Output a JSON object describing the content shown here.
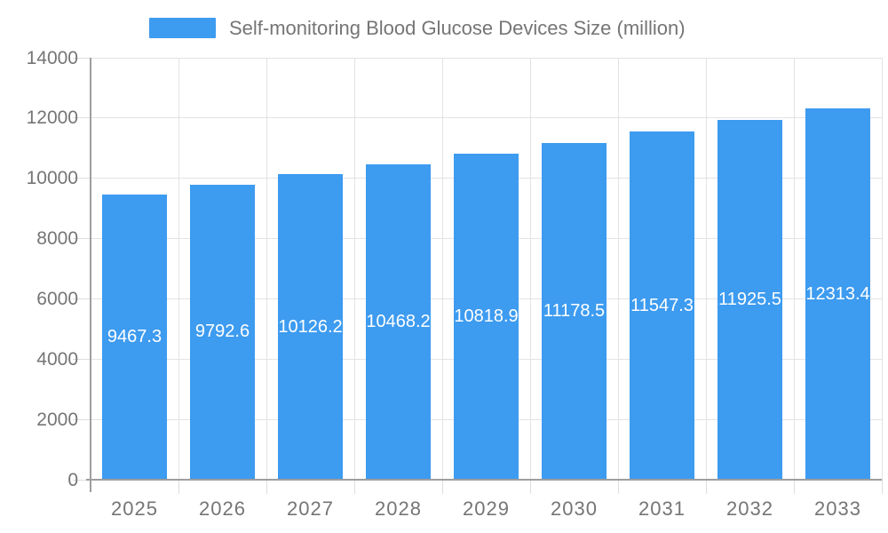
{
  "legend": {
    "series_label": "Self-monitoring Blood Glucose Devices Size (million)"
  },
  "chart_data": {
    "type": "bar",
    "title": "Self-monitoring Blood Glucose Devices Size (million)",
    "categories": [
      "2025",
      "2026",
      "2027",
      "2028",
      "2029",
      "2030",
      "2031",
      "2032",
      "2033"
    ],
    "values": [
      9467.3,
      9792.6,
      10126.2,
      10468.2,
      10818.9,
      11178.5,
      11547.3,
      11925.5,
      12313.4
    ],
    "bar_labels": [
      "9467.3",
      "9792.6",
      "10126.2",
      "10468.2",
      "10818.9",
      "11178.5",
      "11547.3",
      "11925.5",
      "12313.4"
    ],
    "xlabel": "",
    "ylabel": "",
    "ylim": [
      0,
      14000
    ],
    "yticks": [
      0,
      2000,
      4000,
      6000,
      8000,
      10000,
      12000,
      14000
    ],
    "ytick_labels": [
      "0",
      "2000",
      "4000",
      "6000",
      "8000",
      "10000",
      "12000",
      "14000"
    ],
    "grid": true,
    "legend_position": "top",
    "colors": {
      "bar": "#3D9BF0",
      "grid": "#e3e3e3",
      "tick": "#dddddd",
      "axis": "#9e9e9e",
      "axis_text": "#757575",
      "bar_label_text": "#ffffff",
      "background": "#ffffff"
    }
  }
}
